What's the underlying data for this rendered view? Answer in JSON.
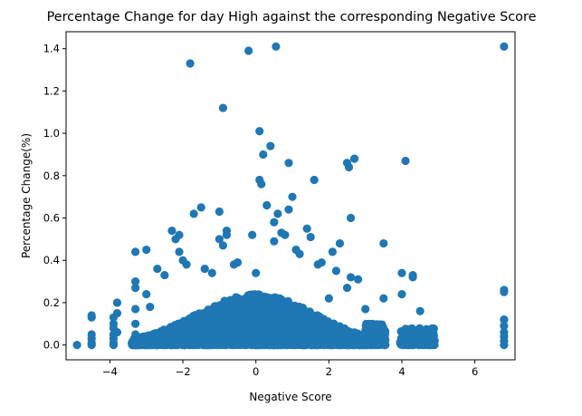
{
  "chart_data": {
    "type": "scatter",
    "title": "Percentage Change for day High against the corresponding Negative Score",
    "xlabel": "Negative Score",
    "ylabel": "Percentage Change(%)",
    "xlim": [
      -5.2,
      7.1
    ],
    "ylim": [
      -0.07,
      1.48
    ],
    "xticks": [
      -4,
      -2,
      0,
      2,
      4,
      6
    ],
    "xtick_labels": [
      "−4",
      "−2",
      "0",
      "2",
      "4",
      "6"
    ],
    "yticks": [
      0.0,
      0.2,
      0.4,
      0.6,
      0.8,
      1.0,
      1.2,
      1.4
    ],
    "ytick_labels": [
      "0.0",
      "0.2",
      "0.4",
      "0.6",
      "0.8",
      "1.0",
      "1.2",
      "1.4"
    ],
    "grid": false,
    "point_color": "#1f77b4",
    "series": [
      {
        "points": [
          [
            -4.9,
            0.0
          ],
          [
            -4.5,
            0.14
          ],
          [
            -4.5,
            0.13
          ],
          [
            -4.5,
            0.05
          ],
          [
            -4.5,
            0.03
          ],
          [
            -4.5,
            0.01
          ],
          [
            -4.5,
            0.0
          ],
          [
            -3.9,
            0.0
          ],
          [
            -3.9,
            0.01
          ],
          [
            -3.9,
            0.03
          ],
          [
            -3.9,
            0.05
          ],
          [
            -3.9,
            0.08
          ],
          [
            -3.9,
            0.1
          ],
          [
            -3.9,
            0.13
          ],
          [
            -3.8,
            0.2
          ],
          [
            -3.8,
            0.15
          ],
          [
            -3.8,
            0.06
          ],
          [
            -3.3,
            0.44
          ],
          [
            -3.3,
            0.3
          ],
          [
            -3.3,
            0.27
          ],
          [
            -3.3,
            0.17
          ],
          [
            -3.3,
            0.1
          ],
          [
            -3.3,
            0.05
          ],
          [
            -3.3,
            0.0
          ],
          [
            -3.0,
            0.45
          ],
          [
            -3.0,
            0.24
          ],
          [
            -2.9,
            0.18
          ],
          [
            -2.7,
            0.36
          ],
          [
            -2.5,
            0.33
          ],
          [
            -2.3,
            0.54
          ],
          [
            -2.2,
            0.5
          ],
          [
            -2.1,
            0.52
          ],
          [
            -2.1,
            0.44
          ],
          [
            -2.0,
            0.4
          ],
          [
            -1.9,
            0.38
          ],
          [
            -1.8,
            1.33
          ],
          [
            -1.7,
            0.62
          ],
          [
            -1.5,
            0.65
          ],
          [
            -1.4,
            0.36
          ],
          [
            -1.2,
            0.34
          ],
          [
            -1.0,
            0.63
          ],
          [
            -1.0,
            0.5
          ],
          [
            -0.9,
            1.12
          ],
          [
            -0.9,
            0.47
          ],
          [
            -0.8,
            0.54
          ],
          [
            -0.8,
            0.52
          ],
          [
            -0.6,
            0.38
          ],
          [
            -0.5,
            0.39
          ],
          [
            -0.2,
            1.39
          ],
          [
            -0.1,
            0.52
          ],
          [
            0.0,
            0.34
          ],
          [
            0.1,
            1.01
          ],
          [
            0.1,
            0.78
          ],
          [
            0.15,
            0.76
          ],
          [
            0.2,
            0.9
          ],
          [
            0.3,
            0.66
          ],
          [
            0.4,
            0.94
          ],
          [
            0.5,
            0.58
          ],
          [
            0.55,
            1.41
          ],
          [
            0.5,
            0.49
          ],
          [
            0.6,
            0.62
          ],
          [
            0.7,
            0.53
          ],
          [
            0.8,
            0.52
          ],
          [
            0.9,
            0.64
          ],
          [
            0.9,
            0.86
          ],
          [
            1.0,
            0.7
          ],
          [
            1.1,
            0.45
          ],
          [
            1.2,
            0.43
          ],
          [
            1.4,
            0.55
          ],
          [
            1.5,
            0.51
          ],
          [
            1.6,
            0.78
          ],
          [
            1.7,
            0.38
          ],
          [
            1.8,
            0.39
          ],
          [
            2.0,
            0.22
          ],
          [
            2.1,
            0.44
          ],
          [
            2.2,
            0.35
          ],
          [
            2.3,
            0.48
          ],
          [
            2.5,
            0.86
          ],
          [
            2.55,
            0.84
          ],
          [
            2.6,
            0.6
          ],
          [
            2.7,
            0.88
          ],
          [
            2.6,
            0.32
          ],
          [
            2.5,
            0.27
          ],
          [
            2.8,
            0.31
          ],
          [
            3.0,
            0.17
          ],
          [
            3.1,
            0.1
          ],
          [
            3.5,
            0.48
          ],
          [
            3.5,
            0.22
          ],
          [
            4.0,
            0.34
          ],
          [
            4.0,
            0.24
          ],
          [
            4.1,
            0.87
          ],
          [
            4.3,
            0.33
          ],
          [
            4.3,
            0.32
          ],
          [
            4.5,
            0.16
          ],
          [
            4.9,
            0.02
          ],
          [
            4.8,
            0.07
          ],
          [
            6.8,
            1.41
          ],
          [
            6.8,
            0.26
          ],
          [
            6.8,
            0.25
          ],
          [
            6.8,
            0.12
          ],
          [
            6.8,
            0.09
          ],
          [
            6.8,
            0.06
          ],
          [
            6.8,
            0.04
          ],
          [
            6.8,
            0.02
          ],
          [
            6.8,
            0.0
          ]
        ]
      }
    ]
  }
}
